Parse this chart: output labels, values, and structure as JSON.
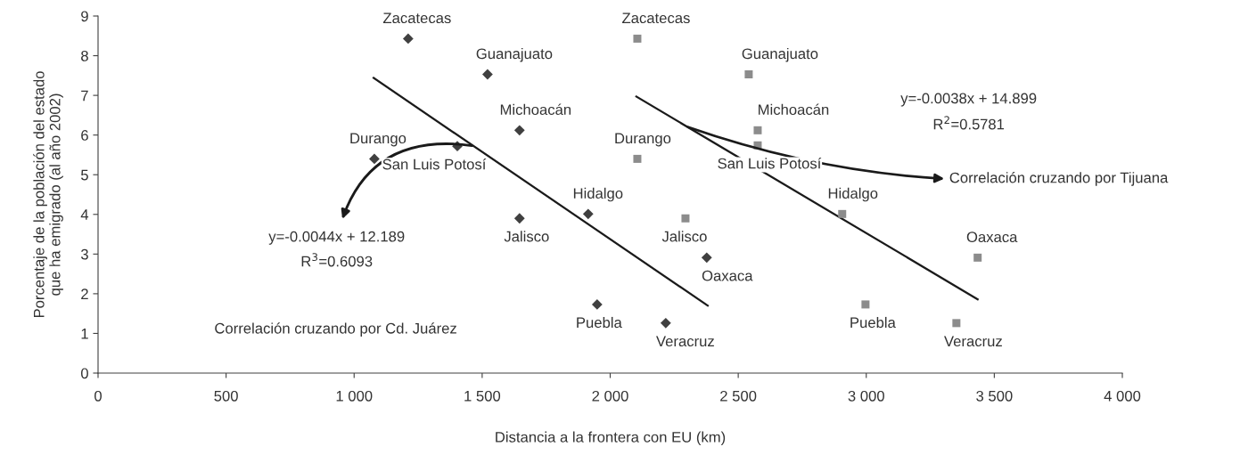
{
  "chart_data": {
    "type": "scatter",
    "xlabel": "Distancia a la frontera con EU (km)",
    "ylabel": "Porcentaje de la población del estado\nque ha emigrado (al año 2002)",
    "xlim": [
      0,
      4000
    ],
    "ylim": [
      0,
      9
    ],
    "xticks": [
      0,
      500,
      {
        "value": 1000,
        "label": "1 000"
      },
      {
        "value": 1500,
        "label": "1 500"
      },
      {
        "value": 2000,
        "label": "2 000"
      },
      {
        "value": 2500,
        "label": "2 500"
      },
      {
        "value": 3000,
        "label": "3 000"
      },
      {
        "value": 3500,
        "label": "3 500"
      },
      {
        "value": 4000,
        "label": "4 000"
      }
    ],
    "yticks": [
      0,
      1,
      2,
      3,
      4,
      5,
      6,
      7,
      8,
      9
    ],
    "grid": false,
    "legend": false,
    "series": [
      {
        "marker": "diamond",
        "color": "#404040",
        "x": [
          1211,
          1521,
          1646,
          1079,
          1403,
          1646,
          1914,
          2377,
          1949,
          2217
        ],
        "values": [
          8.43,
          7.53,
          6.12,
          5.4,
          5.72,
          3.9,
          4.01,
          2.91,
          1.73,
          1.26
        ]
      },
      {
        "marker": "square",
        "color": "#8c8c8c",
        "x": [
          2106,
          2541,
          2576,
          2576,
          2106,
          2294,
          2906,
          2997,
          3435,
          3352
        ],
        "values": [
          8.43,
          7.53,
          6.12,
          5.74,
          5.4,
          3.9,
          4.01,
          1.73,
          2.91,
          1.26
        ]
      },
      {
        "type": "line",
        "marker": "none",
        "color": "#1a1a1a",
        "x": [
          1076,
          2381
        ],
        "values": [
          7.44,
          1.7
        ]
      },
      {
        "type": "line",
        "marker": "none",
        "color": "#1a1a1a",
        "x": [
          2102,
          3435
        ],
        "values": [
          6.97,
          1.86
        ]
      }
    ],
    "annotations": [
      {
        "text": "Zacatecas",
        "x": 1211,
        "y": 8.43
      },
      {
        "text": "Guanajuato",
        "x": 1521,
        "y": 7.53
      },
      {
        "text": "Michoacán",
        "x": 1646,
        "y": 6.12
      },
      {
        "text": "Durango",
        "x": 1079,
        "y": 5.4
      },
      {
        "text": "San Luis Potosí",
        "x": 1403,
        "y": 5.72
      },
      {
        "text": "Jalisco",
        "x": 1646,
        "y": 3.9
      },
      {
        "text": "Hidalgo",
        "x": 1914,
        "y": 4.01
      },
      {
        "text": "Oaxaca",
        "x": 2377,
        "y": 2.91
      },
      {
        "text": "Puebla",
        "x": 1949,
        "y": 1.73
      },
      {
        "text": "Veracruz",
        "x": 2217,
        "y": 1.26
      },
      {
        "text": "Zacatecas",
        "x": 2106,
        "y": 8.43
      },
      {
        "text": "Guanajuato",
        "x": 2541,
        "y": 7.53
      },
      {
        "text": "Michoacán",
        "x": 2576,
        "y": 6.12
      },
      {
        "text": "San Luis Potosí",
        "x": 2576,
        "y": 5.74
      },
      {
        "text": "Durango",
        "x": 2106,
        "y": 5.4
      },
      {
        "text": "Jalisco",
        "x": 2294,
        "y": 3.9
      },
      {
        "text": "Hidalgo",
        "x": 2906,
        "y": 4.01
      },
      {
        "text": "Puebla",
        "x": 2997,
        "y": 1.73
      },
      {
        "text": "Oaxaca",
        "x": 3435,
        "y": 2.91
      },
      {
        "text": "Veracruz",
        "x": 3352,
        "y": 1.26
      },
      {
        "text": "y=-0.0044x + 12.189",
        "x": 1465,
        "y": 5.73
      },
      "R$^{3}$=0.6093",
      "Correlación cruzando por Cd. Juárez",
      "y=-0.0038x + 14.899",
      "R$^{2}$=0.5781",
      {
        "text": "Correlación cruzando por Tijuana",
        "x": 2300,
        "y": 6.21
      }
    ]
  }
}
